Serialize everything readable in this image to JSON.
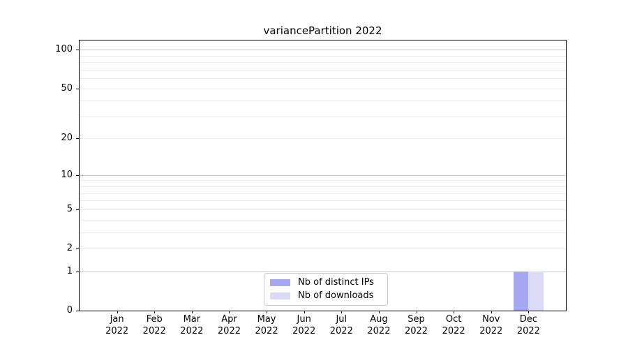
{
  "chart_data": {
    "type": "bar",
    "title": "variancePartition 2022",
    "categories": [
      "Jan",
      "Feb",
      "Mar",
      "Apr",
      "May",
      "Jun",
      "Jul",
      "Aug",
      "Sep",
      "Oct",
      "Nov",
      "Dec"
    ],
    "year": "2022",
    "series": [
      {
        "name": "Nb of distinct IPs",
        "color": "#a8a8f2",
        "values": [
          0,
          0,
          0,
          0,
          0,
          0,
          0,
          0,
          0,
          0,
          0,
          1
        ]
      },
      {
        "name": "Nb of downloads",
        "color": "#dbdbf8",
        "values": [
          0,
          0,
          0,
          0,
          0,
          0,
          0,
          0,
          0,
          0,
          0,
          1
        ]
      }
    ],
    "yscale": "log1p",
    "ylim": [
      0,
      115
    ],
    "yticks": [
      0,
      1,
      2,
      5,
      10,
      20,
      50,
      100
    ],
    "gridlines": {
      "major": [
        1,
        10,
        100
      ],
      "minor": [
        2,
        3,
        4,
        5,
        6,
        7,
        8,
        9,
        20,
        30,
        40,
        50,
        60,
        70,
        80,
        90
      ]
    },
    "grid": "horizontal",
    "legend_position": "lower center",
    "colors": {
      "grid_major": "#c6c6c6",
      "grid_minor": "#e9e9e9",
      "axis": "#000000",
      "legend_border": "#c9c9c9",
      "background": "#ffffff"
    }
  }
}
